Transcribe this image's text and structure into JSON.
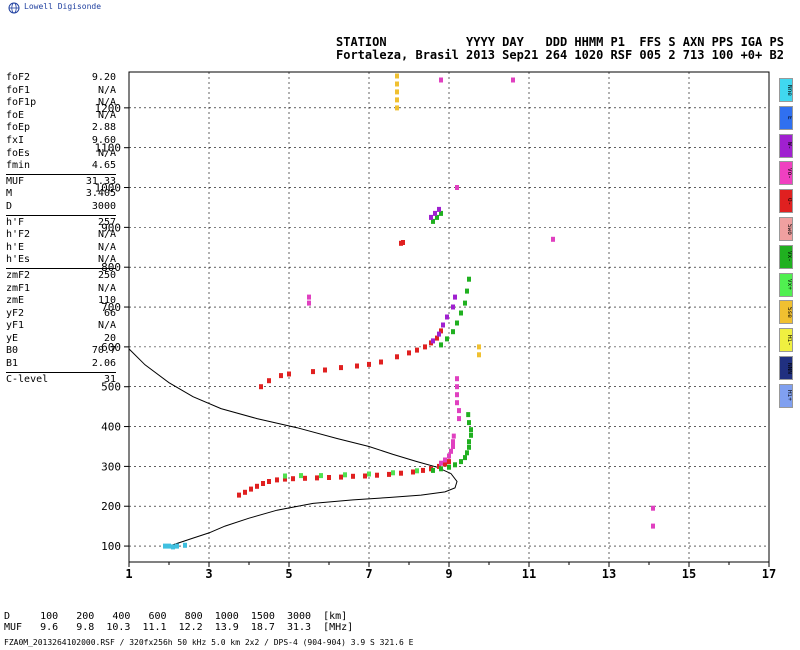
{
  "brand": "Lowell Digisonde",
  "header": {
    "line1": "STATION           YYYY DAY   DDD HHMM P1  FFS S AXN PPS IGA PS",
    "line2": "Fortaleza, Brasil 2013 Sep21 264 1020 RSF 005 2 713 100 +0+ B2"
  },
  "params": [
    {
      "label": "foF2",
      "value": "9.20"
    },
    {
      "label": "foF1",
      "value": "N/A"
    },
    {
      "label": "foF1p",
      "value": "N/A"
    },
    {
      "label": "foE",
      "value": "N/A"
    },
    {
      "label": "foEp",
      "value": "2.88"
    },
    {
      "label": "fxI",
      "value": "9.60"
    },
    {
      "label": "foEs",
      "value": "N/A"
    },
    {
      "label": "fmin",
      "value": "4.65"
    },
    {
      "label": "MUF",
      "value": "31.33"
    },
    {
      "label": "M",
      "value": "3.405"
    },
    {
      "label": "D",
      "value": "3000"
    },
    {
      "label": "h'F",
      "value": "257"
    },
    {
      "label": "h'F2",
      "value": "N/A"
    },
    {
      "label": "h'E",
      "value": "N/A"
    },
    {
      "label": "h'Es",
      "value": "N/A"
    },
    {
      "label": "zmF2",
      "value": "250"
    },
    {
      "label": "zmF1",
      "value": "N/A"
    },
    {
      "label": "zmE",
      "value": "110"
    },
    {
      "label": "yF2",
      "value": "66"
    },
    {
      "label": "yF1",
      "value": "N/A"
    },
    {
      "label": "yE",
      "value": "20"
    },
    {
      "label": "B0",
      "value": "70.7"
    },
    {
      "label": "B1",
      "value": "2.06"
    },
    {
      "label": "C-level",
      "value": "31"
    }
  ],
  "footer": {
    "d_line": "D     100   200   400   600   800  1000  1500  3000  [km]",
    "muf_line": "MUF   9.6   9.8  10.3  11.1  12.2  13.9  18.7  31.3  [MHz]"
  },
  "filename": "FZA0M_2013264102000.RSF / 320fx256h 50 kHz 5.0 km 2x2 / DPS-4 (904-904)  3.9 S 321.6 E",
  "legend": [
    {
      "label": "Nne",
      "color": "#40d8f0"
    },
    {
      "label": "E",
      "color": "#3070f0"
    },
    {
      "label": "W-",
      "color": "#a020d0"
    },
    {
      "label": "Vo-",
      "color": "#f040c0"
    },
    {
      "label": "O-",
      "color": "#e02020"
    },
    {
      "label": "Swo",
      "color": "#f0a0a0"
    },
    {
      "label": "Vx-",
      "color": "#20b020"
    },
    {
      "label": "Vx+",
      "color": "#50f050"
    },
    {
      "label": "Sse",
      "color": "#f0c030"
    },
    {
      "label": "Hi-",
      "color": "#f0f040"
    },
    {
      "label": "NNN",
      "color": "#203080"
    },
    {
      "label": "Hi+",
      "color": "#80a0f0"
    }
  ],
  "chart_data": {
    "type": "scatter",
    "xlabel": "",
    "ylabel": "",
    "x_ticks": [
      "1",
      "3",
      "5",
      "7",
      "9",
      "11",
      "13",
      "15",
      "17"
    ],
    "y_ticks": [
      "100",
      "200",
      "300",
      "400",
      "500",
      "600",
      "700",
      "800",
      "900",
      "1000",
      "1100",
      "1200"
    ],
    "xlim": [
      1,
      17
    ],
    "ylim": [
      60,
      1290
    ],
    "grid": true,
    "profile": [
      [
        1.0,
        595
      ],
      [
        1.4,
        555
      ],
      [
        2.0,
        510
      ],
      [
        2.6,
        475
      ],
      [
        3.3,
        445
      ],
      [
        4.2,
        420
      ],
      [
        5.2,
        397
      ],
      [
        6.2,
        370
      ],
      [
        7.0,
        350
      ],
      [
        7.6,
        330
      ],
      [
        8.2,
        312
      ],
      [
        8.7,
        298
      ],
      [
        9.05,
        282
      ],
      [
        9.2,
        262
      ],
      [
        9.15,
        246
      ],
      [
        8.9,
        236
      ],
      [
        8.3,
        228
      ],
      [
        7.5,
        222
      ],
      [
        6.6,
        216
      ],
      [
        5.6,
        207
      ],
      [
        4.7,
        190
      ],
      [
        4.0,
        170
      ],
      [
        3.4,
        150
      ],
      [
        3.0,
        133
      ],
      [
        2.6,
        120
      ],
      [
        2.3,
        110
      ],
      [
        2.0,
        100
      ]
    ],
    "traces": [
      {
        "name": "O",
        "color": "#e02020",
        "points": [
          [
            3.75,
            228
          ],
          [
            3.9,
            235
          ],
          [
            4.05,
            243
          ],
          [
            4.2,
            250
          ],
          [
            4.35,
            257
          ],
          [
            4.5,
            262
          ],
          [
            4.7,
            266
          ],
          [
            4.9,
            268
          ],
          [
            5.1,
            269
          ],
          [
            5.4,
            270
          ],
          [
            5.7,
            271
          ],
          [
            6.0,
            272
          ],
          [
            6.3,
            273
          ],
          [
            6.6,
            275
          ],
          [
            6.9,
            276
          ],
          [
            7.2,
            278
          ],
          [
            7.5,
            280
          ],
          [
            7.8,
            283
          ],
          [
            8.1,
            286
          ],
          [
            8.35,
            290
          ],
          [
            8.55,
            294
          ],
          [
            8.75,
            300
          ],
          [
            8.9,
            306
          ],
          [
            9.0,
            312
          ]
        ]
      },
      {
        "name": "Vx+",
        "color": "#50e050",
        "points": [
          [
            4.9,
            276
          ],
          [
            5.3,
            277
          ],
          [
            5.8,
            277
          ],
          [
            6.4,
            279
          ],
          [
            7.0,
            281
          ],
          [
            7.6,
            284
          ],
          [
            8.2,
            289
          ]
        ]
      },
      {
        "name": "X",
        "color": "#20b020",
        "points": [
          [
            8.6,
            290
          ],
          [
            8.8,
            294
          ],
          [
            9.0,
            298
          ],
          [
            9.15,
            304
          ],
          [
            9.3,
            312
          ],
          [
            9.4,
            322
          ],
          [
            9.45,
            334
          ],
          [
            9.5,
            348
          ],
          [
            9.5,
            362
          ],
          [
            9.55,
            378
          ],
          [
            9.55,
            392
          ],
          [
            9.5,
            410
          ],
          [
            9.48,
            430
          ]
        ]
      },
      {
        "name": "Vo-",
        "color": "#e040c0",
        "points": [
          [
            8.8,
            308
          ],
          [
            8.9,
            316
          ],
          [
            9.0,
            326
          ],
          [
            9.05,
            338
          ],
          [
            9.1,
            350
          ],
          [
            9.1,
            362
          ],
          [
            9.12,
            376
          ]
        ]
      },
      {
        "name": "2F O",
        "color": "#e02020",
        "points": [
          [
            4.3,
            500
          ],
          [
            4.5,
            515
          ],
          [
            4.8,
            528
          ],
          [
            5.0,
            532
          ],
          [
            5.6,
            538
          ],
          [
            5.9,
            542
          ],
          [
            6.3,
            548
          ],
          [
            6.7,
            552
          ],
          [
            7.0,
            556
          ],
          [
            7.3,
            562
          ],
          [
            7.7,
            575
          ],
          [
            8.0,
            585
          ],
          [
            8.2,
            592
          ],
          [
            8.4,
            600
          ],
          [
            8.55,
            610
          ],
          [
            8.7,
            622
          ],
          [
            8.8,
            640
          ]
        ]
      },
      {
        "name": "2F X",
        "color": "#20b020",
        "points": [
          [
            8.8,
            605
          ],
          [
            8.95,
            620
          ],
          [
            9.1,
            638
          ],
          [
            9.2,
            660
          ],
          [
            9.3,
            685
          ],
          [
            9.4,
            710
          ],
          [
            9.45,
            740
          ],
          [
            9.5,
            770
          ]
        ]
      },
      {
        "name": "2F Vo-",
        "color": "#a020d0",
        "points": [
          [
            8.6,
            615
          ],
          [
            8.75,
            632
          ],
          [
            8.85,
            655
          ],
          [
            8.95,
            675
          ],
          [
            9.1,
            700
          ],
          [
            9.15,
            725
          ]
        ]
      },
      {
        "name": "3F",
        "color": "#e02020",
        "points": [
          [
            7.8,
            860
          ],
          [
            7.85,
            862
          ]
        ]
      },
      {
        "name": "3F X",
        "color": "#20b020",
        "points": [
          [
            8.6,
            915
          ],
          [
            8.7,
            925
          ],
          [
            8.8,
            935
          ]
        ]
      },
      {
        "name": "3F Vo-",
        "color": "#a020d0",
        "points": [
          [
            8.55,
            925
          ],
          [
            8.65,
            935
          ],
          [
            8.75,
            945
          ]
        ]
      },
      {
        "name": "Es",
        "color": "#40c0e0",
        "points": [
          [
            1.9,
            100
          ],
          [
            2.0,
            100
          ],
          [
            2.1,
            98
          ],
          [
            2.2,
            100
          ],
          [
            2.4,
            102
          ]
        ]
      },
      {
        "name": "Sse",
        "color": "#f0c030",
        "points": [
          [
            7.7,
            1200
          ],
          [
            7.7,
            1220
          ],
          [
            7.7,
            1240
          ],
          [
            7.7,
            1260
          ],
          [
            7.7,
            1280
          ],
          [
            9.75,
            580
          ],
          [
            9.75,
            600
          ]
        ]
      },
      {
        "name": "Scatter",
        "color": "#e040c0",
        "points": [
          [
            9.2,
            460
          ],
          [
            9.2,
            480
          ],
          [
            9.2,
            500
          ],
          [
            9.2,
            520
          ],
          [
            9.25,
            440
          ],
          [
            9.25,
            420
          ],
          [
            5.5,
            710
          ],
          [
            5.5,
            725
          ],
          [
            10.6,
            1270
          ],
          [
            8.8,
            1270
          ],
          [
            14.1,
            150
          ],
          [
            14.1,
            195
          ],
          [
            11.6,
            870
          ],
          [
            9.2,
            1000
          ]
        ]
      }
    ]
  }
}
